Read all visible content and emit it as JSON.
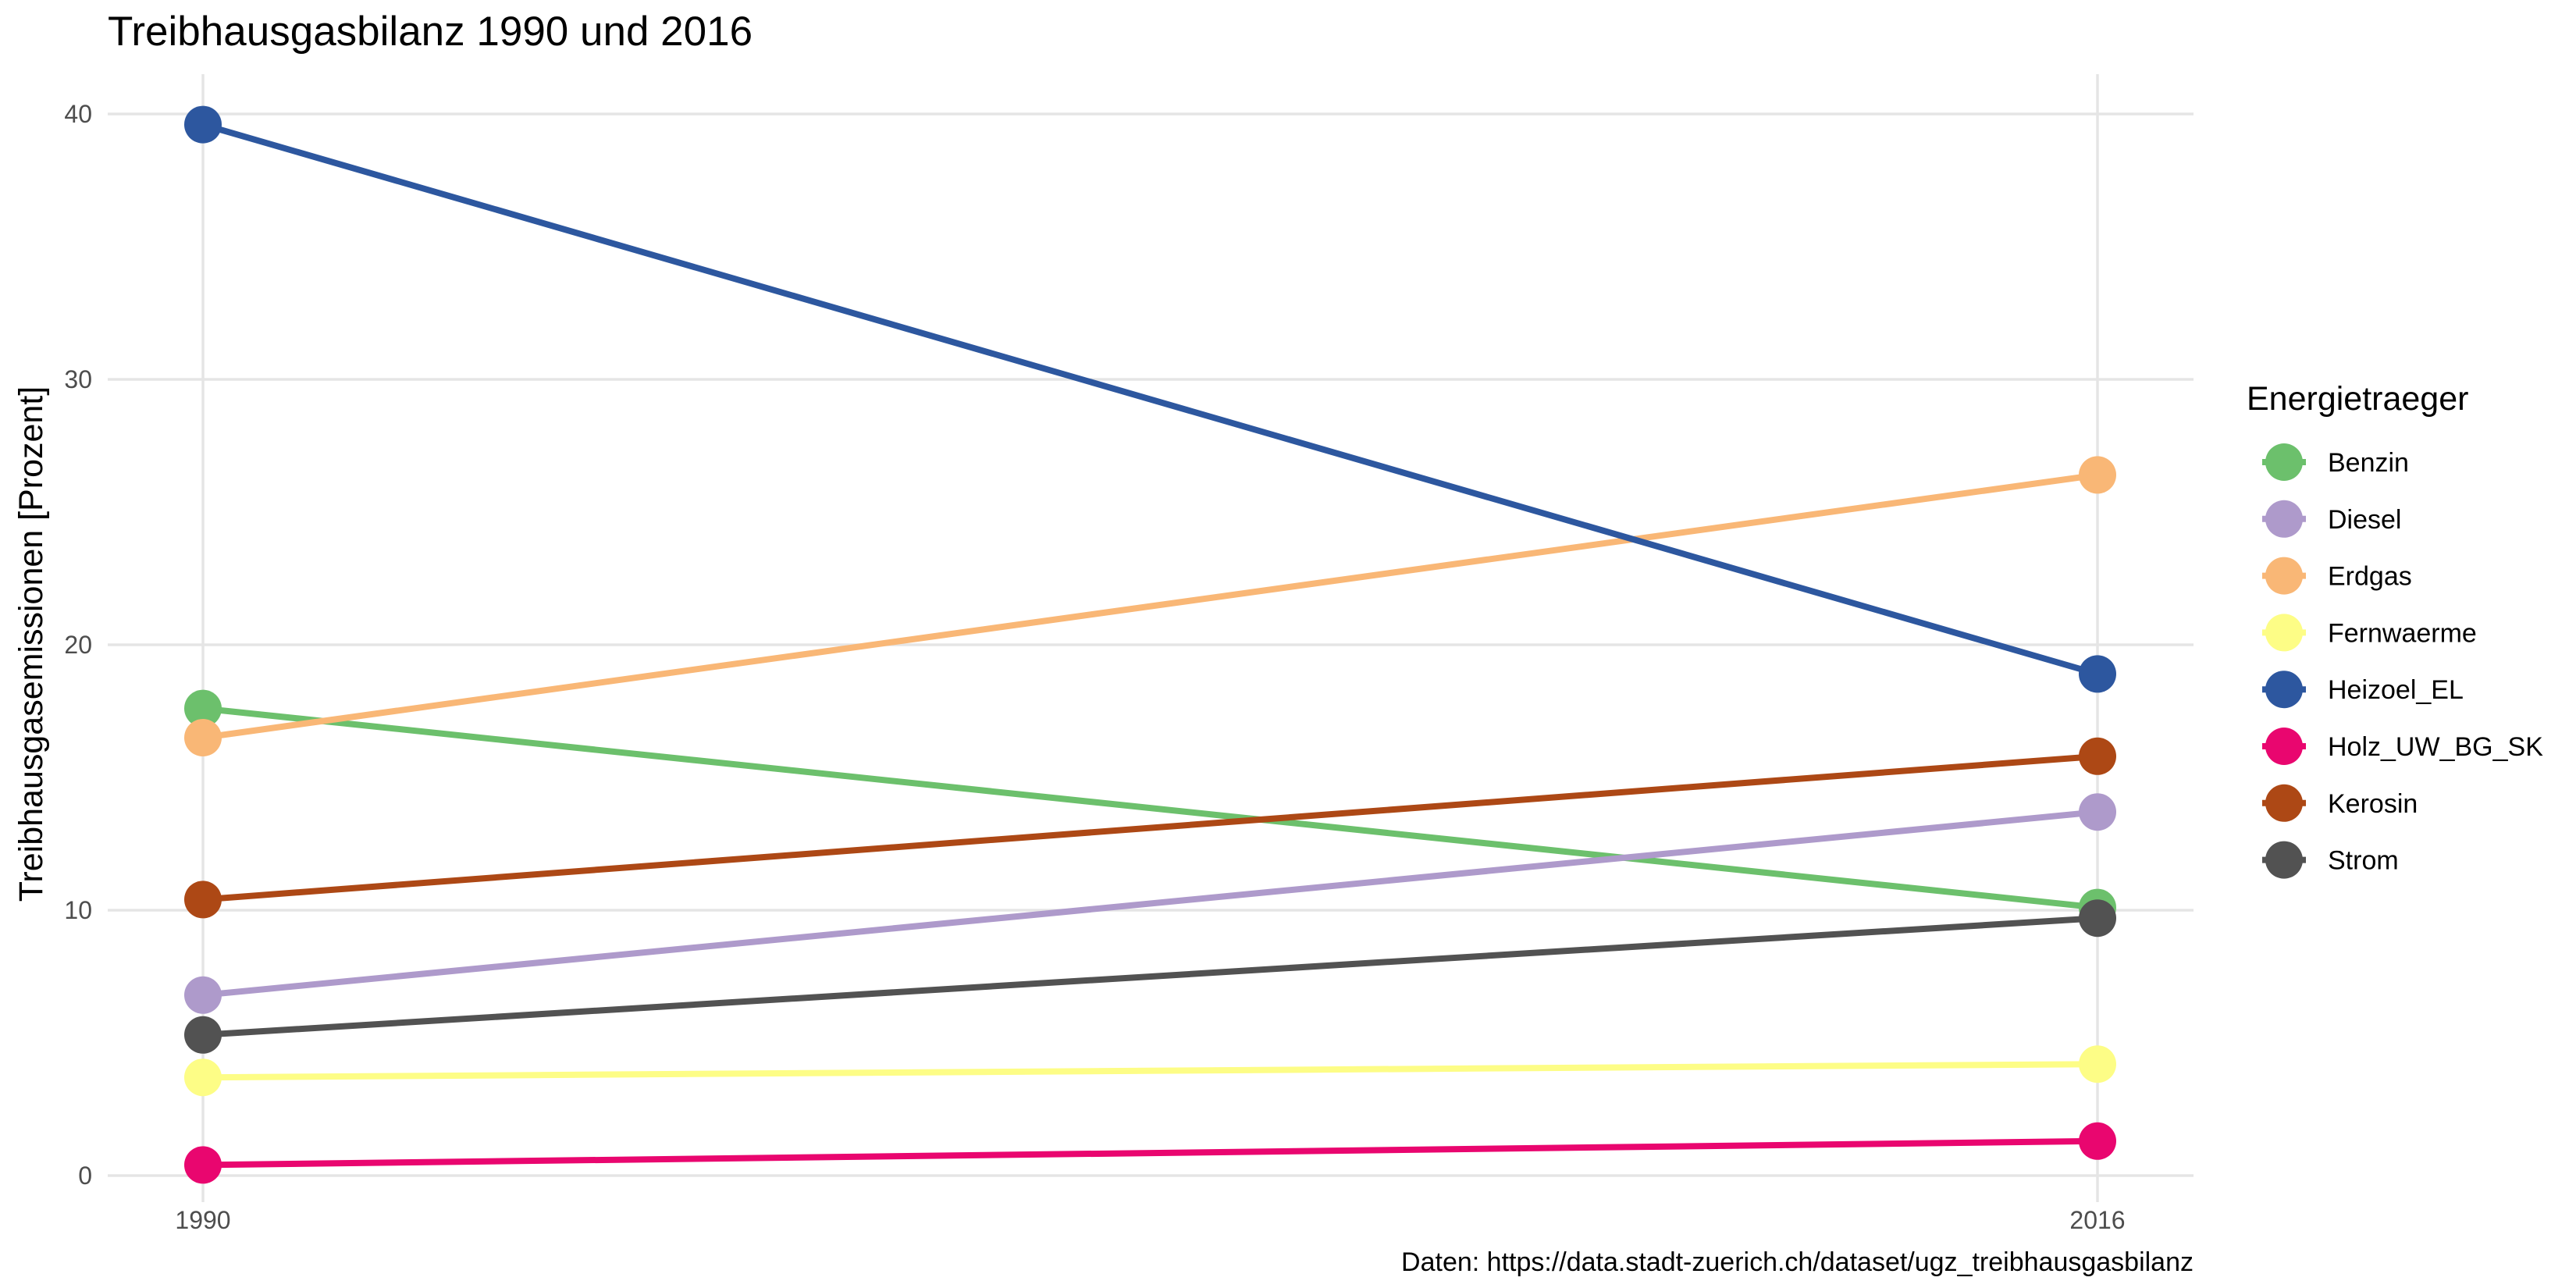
{
  "chart_data": {
    "type": "line",
    "title": "Treibhausgasbilanz 1990 und 2016",
    "xlabel": "",
    "ylabel": "Treibhausgasemissionen [Prozent]",
    "x": [
      1990,
      2016
    ],
    "xticks": [
      "1990",
      "2016"
    ],
    "ylim": [
      -1,
      41.5
    ],
    "yticks": [
      0,
      10,
      20,
      30,
      40
    ],
    "grid": true,
    "legend": {
      "title": "Energietraeger",
      "position": "right"
    },
    "caption": "Daten: https://data.stadt-zuerich.ch/dataset/ugz_treibhausgasbilanz",
    "series": [
      {
        "name": "Benzin",
        "color": "#6cc06c",
        "values": [
          17.6,
          10.1
        ]
      },
      {
        "name": "Diesel",
        "color": "#ae9acb",
        "values": [
          6.8,
          13.7
        ]
      },
      {
        "name": "Erdgas",
        "color": "#f9b776",
        "values": [
          16.5,
          26.4
        ]
      },
      {
        "name": "Fernwaerme",
        "color": "#fdfd86",
        "values": [
          3.7,
          4.2
        ]
      },
      {
        "name": "Heizoel_EL",
        "color": "#2d579f",
        "values": [
          39.6,
          18.9
        ]
      },
      {
        "name": "Holz_UW_BG_SK",
        "color": "#e9066f",
        "values": [
          0.4,
          1.3
        ]
      },
      {
        "name": "Kerosin",
        "color": "#ad4815",
        "values": [
          10.4,
          15.8
        ]
      },
      {
        "name": "Strom",
        "color": "#525252",
        "values": [
          5.3,
          9.7
        ]
      }
    ]
  }
}
